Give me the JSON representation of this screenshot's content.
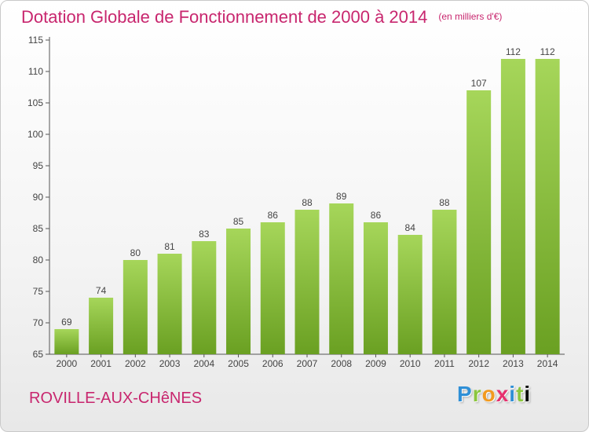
{
  "title": "Dotation Globale de Fonctionnement de 2000 à 2014",
  "unit_label": "(en milliers d'€)",
  "commune": "ROVILLE-AUX-CHêNES",
  "logo_letters": [
    "P",
    "r",
    "o",
    "x",
    "i",
    "t",
    "i"
  ],
  "colors": {
    "title": "#c8266e",
    "bar_light": "#a6d65a",
    "bar_dark": "#6aa022"
  },
  "chart_data": {
    "type": "bar",
    "categories": [
      "2000",
      "2001",
      "2002",
      "2003",
      "2004",
      "2005",
      "2006",
      "2007",
      "2008",
      "2009",
      "2010",
      "2011",
      "2012",
      "2013",
      "2014"
    ],
    "values": [
      69,
      74,
      80,
      81,
      83,
      85,
      86,
      88,
      89,
      86,
      84,
      88,
      107,
      112,
      112
    ],
    "ylim": [
      65,
      115
    ],
    "yticks": [
      65,
      70,
      75,
      80,
      85,
      90,
      95,
      100,
      105,
      110,
      115
    ],
    "grid": false,
    "data_labels": true
  }
}
